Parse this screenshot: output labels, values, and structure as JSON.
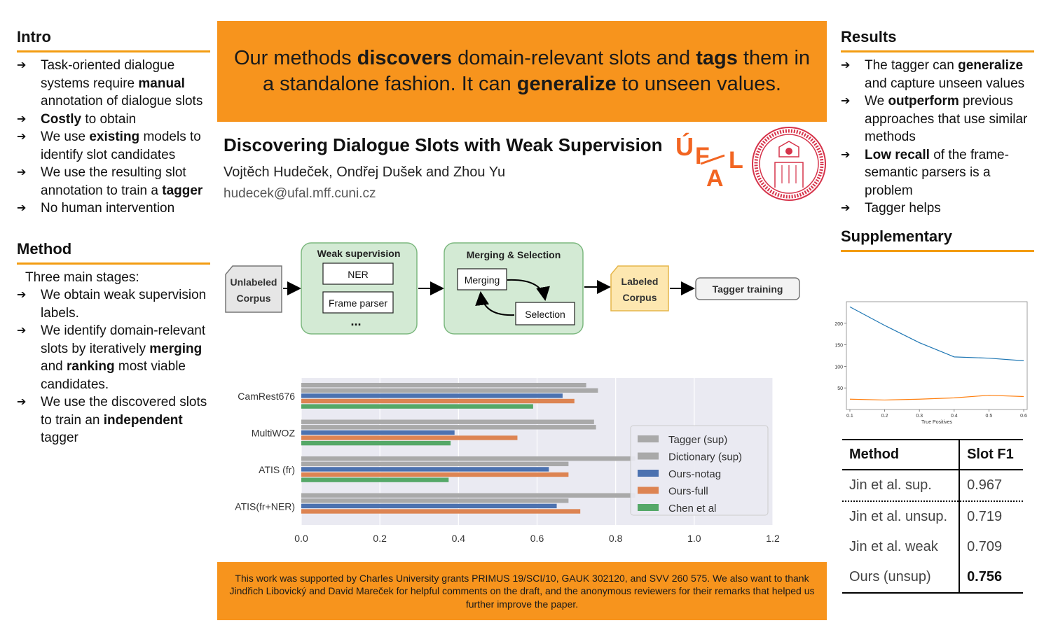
{
  "intro": {
    "heading": "Intro",
    "items": [
      [
        {
          "t": "Task-oriented dialogue systems require "
        },
        {
          "t": "manual",
          "b": true
        },
        {
          "t": " annotation of dialogue slots"
        }
      ],
      [
        {
          "t": "Costly",
          "b": true
        },
        {
          "t": " to obtain"
        }
      ],
      [
        {
          "t": "We use "
        },
        {
          "t": "existing",
          "b": true
        },
        {
          "t": " models to identify slot candidates"
        }
      ],
      [
        {
          "t": "We use the resulting slot annotation to train a "
        },
        {
          "t": "tagger",
          "b": true
        }
      ],
      [
        {
          "t": "No human intervention"
        }
      ]
    ]
  },
  "method": {
    "heading": "Method",
    "intro": "Three main stages:",
    "items": [
      [
        {
          "t": "We obtain weak supervision labels."
        }
      ],
      [
        {
          "t": "We identify domain-relevant slots by iteratively "
        },
        {
          "t": "merging",
          "b": true
        },
        {
          "t": " and "
        },
        {
          "t": "ranking",
          "b": true
        },
        {
          "t": " most viable candidates."
        }
      ],
      [
        {
          "t": "We use the discovered slots to train an "
        },
        {
          "t": "independent",
          "b": true
        },
        {
          "t": " tagger"
        }
      ]
    ]
  },
  "banner": [
    {
      "t": "Our methods "
    },
    {
      "t": "discovers",
      "b": true
    },
    {
      "t": " domain-relevant slots and "
    },
    {
      "t": "tags",
      "b": true
    },
    {
      "t": " them in a standalone fashion. It can "
    },
    {
      "t": "generalize",
      "b": true
    },
    {
      "t": " to unseen values."
    }
  ],
  "paper": {
    "title": "Discovering Dialogue Slots with Weak Supervision",
    "authors": "Vojtěch Hudeček, Ondřej Dušek and Zhou Yu",
    "email": "hudecek@ufal.mff.cuni.cz"
  },
  "logo": {
    "letters": "ÚFAL",
    "color": "#f26522"
  },
  "diagram": {
    "unlabeled": [
      "Unlabeled",
      "Corpus"
    ],
    "weak_title": "Weak supervision",
    "ner": "NER",
    "frame": "Frame parser",
    "dots": "...",
    "merge_title": "Merging & Selection",
    "merging": "Merging",
    "selection": "Selection",
    "labeled": [
      "Labeled",
      "Corpus"
    ],
    "tagger": "Tagger training"
  },
  "chart_data": [
    {
      "type": "bar",
      "orientation": "horizontal",
      "categories": [
        "CamRest676",
        "MultiWOZ",
        "ATIS (fr)",
        "ATIS(fr+NER)"
      ],
      "series": [
        {
          "name": "Tagger (sup)",
          "color": "#a9a9a9",
          "values": [
            0.725,
            0.745,
            0.85,
            0.85
          ]
        },
        {
          "name": "Dictionary (sup)",
          "color": "#a9a9a9",
          "values": [
            0.755,
            0.75,
            0.68,
            0.68
          ]
        },
        {
          "name": "Ours-notag",
          "color": "#4c72b0",
          "values": [
            0.665,
            0.39,
            0.63,
            0.65
          ]
        },
        {
          "name": "Ours-full",
          "color": "#dd8452",
          "values": [
            0.695,
            0.55,
            0.68,
            0.71
          ]
        },
        {
          "name": "Chen et al",
          "color": "#55a868",
          "values": [
            0.59,
            0.38,
            0.375,
            null
          ]
        }
      ],
      "xlim": [
        0,
        1.2
      ],
      "xticks": [
        "0.0",
        "0.2",
        "0.4",
        "0.6",
        "0.8",
        "1.0",
        "1.2"
      ],
      "grid": true,
      "legend": "right"
    },
    {
      "type": "line",
      "x": [
        0.1,
        0.2,
        0.3,
        0.4,
        0.5,
        0.6
      ],
      "xlabel": "True Positives",
      "series": [
        {
          "color": "#1f77b4",
          "values": [
            238,
            195,
            155,
            122,
            119,
            113
          ]
        },
        {
          "color": "#ff7f0e",
          "values": [
            24,
            22,
            24,
            27,
            33,
            30
          ]
        }
      ],
      "ylim": [
        0,
        250
      ],
      "yticks": [
        "50",
        "100",
        "150",
        "200"
      ],
      "xticks": [
        "0.1",
        "0.2",
        "0.3",
        "0.4",
        "0.5",
        "0.6"
      ]
    }
  ],
  "results": {
    "heading": "Results",
    "items": [
      [
        {
          "t": "The tagger can "
        },
        {
          "t": "generalize",
          "b": true
        },
        {
          "t": " and capture unseen values"
        }
      ],
      [
        {
          "t": "We "
        },
        {
          "t": "outperform",
          "b": true
        },
        {
          "t": " previous approaches that use similar methods"
        }
      ],
      [
        {
          "t": "Low recall",
          "b": true
        },
        {
          "t": " of the frame-semantic parsers is a problem"
        }
      ],
      [
        {
          "t": "Tagger helps"
        }
      ]
    ]
  },
  "supplementary": {
    "heading": "Supplementary"
  },
  "table": {
    "headers": [
      "Method",
      "Slot F1"
    ],
    "rows": [
      [
        "Jin et al. sup.",
        "0.967"
      ],
      [
        "Jin et al. unsup.",
        "0.719"
      ],
      [
        "Jin et al. weak",
        "0.709"
      ],
      [
        "Ours (unsup)",
        "0.756"
      ]
    ]
  },
  "footer": "This work was supported by Charles University grants PRIMUS 19/SCI/10, GAUK 302120, and SVV 260 575. We also want to thank Jindřich Libovický and David Mareček for helpful comments on the draft, and the anonymous reviewers for their remarks that helped us further improve the paper."
}
